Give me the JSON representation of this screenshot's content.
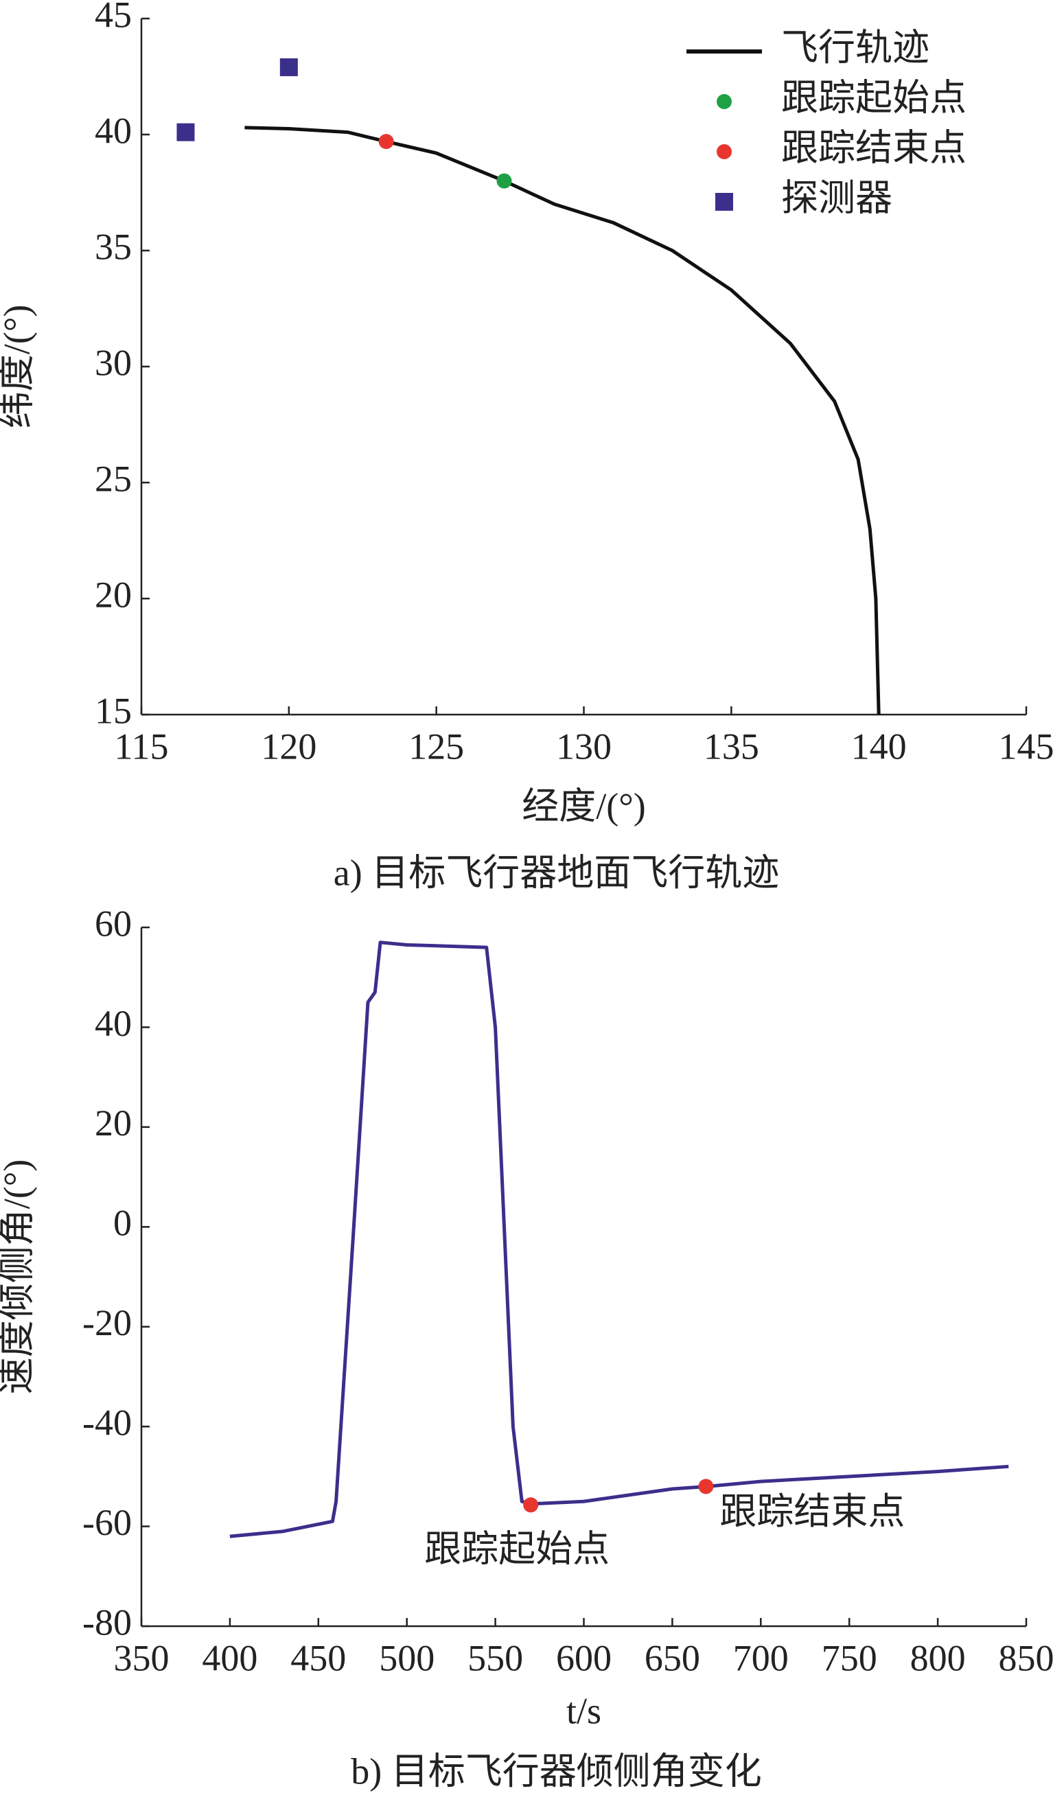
{
  "chart_data": [
    {
      "type": "line",
      "caption": "a) 目标飞行器地面飞行轨迹",
      "xlabel": "经度/(°)",
      "ylabel": "纬度/(°)",
      "xlim": [
        115,
        145
      ],
      "xticks": [
        115,
        120,
        125,
        130,
        135,
        140,
        145
      ],
      "ylim": [
        15,
        45
      ],
      "yticks": [
        15,
        20,
        25,
        30,
        35,
        40,
        45
      ],
      "legend": "upper right",
      "series": [
        {
          "name": "飞行轨迹",
          "color": "#111111",
          "marker": "line",
          "x": [
            118.5,
            120,
            122,
            123.3,
            125,
            127.3,
            129,
            131,
            133,
            135,
            137,
            138.5,
            139.3,
            139.7,
            139.9,
            140
          ],
          "y": [
            40.3,
            40.25,
            40.1,
            39.7,
            39.2,
            38,
            37,
            36.2,
            35,
            33.3,
            31,
            28.5,
            26,
            23,
            20,
            15
          ]
        },
        {
          "name": "跟踪起始点",
          "color": "#1fa045",
          "marker": "circle",
          "x": [
            127.3
          ],
          "y": [
            38
          ]
        },
        {
          "name": "跟踪结束点",
          "color": "#e8362f",
          "marker": "circle",
          "x": [
            123.3
          ],
          "y": [
            39.7
          ]
        },
        {
          "name": "探测器",
          "color": "#3b2f8c",
          "marker": "square",
          "x": [
            116.5,
            120
          ],
          "y": [
            40.1,
            42.9
          ]
        }
      ]
    },
    {
      "type": "line",
      "caption": "b) 目标飞行器倾侧角变化",
      "xlabel": "t/s",
      "ylabel": "速度倾侧角/(°)",
      "xlim": [
        350,
        850
      ],
      "xticks": [
        350,
        400,
        450,
        500,
        550,
        600,
        650,
        700,
        750,
        800,
        850
      ],
      "ylim": [
        -80,
        60
      ],
      "yticks": [
        -80,
        -60,
        -40,
        -20,
        0,
        20,
        40,
        60
      ],
      "series": [
        {
          "color": "#3b2f8c",
          "marker": "line",
          "x": [
            400,
            430,
            458,
            460,
            470,
            478,
            482,
            485,
            500,
            545,
            550,
            555,
            560,
            565,
            570,
            600,
            650,
            670,
            700,
            750,
            800,
            840
          ],
          "y": [
            -62,
            -61,
            -59,
            -55,
            0,
            45,
            47,
            57,
            56.5,
            56,
            40,
            0,
            -40,
            -55,
            -55.5,
            -55,
            -52.5,
            -52,
            -51,
            -50,
            -49,
            -48
          ]
        }
      ],
      "annotations": [
        {
          "text": "跟踪起始点",
          "x": 570,
          "y": -55.7,
          "color": "#e8362f"
        },
        {
          "text": "跟踪结束点",
          "x": 669,
          "y": -52,
          "color": "#e8362f"
        }
      ]
    }
  ]
}
